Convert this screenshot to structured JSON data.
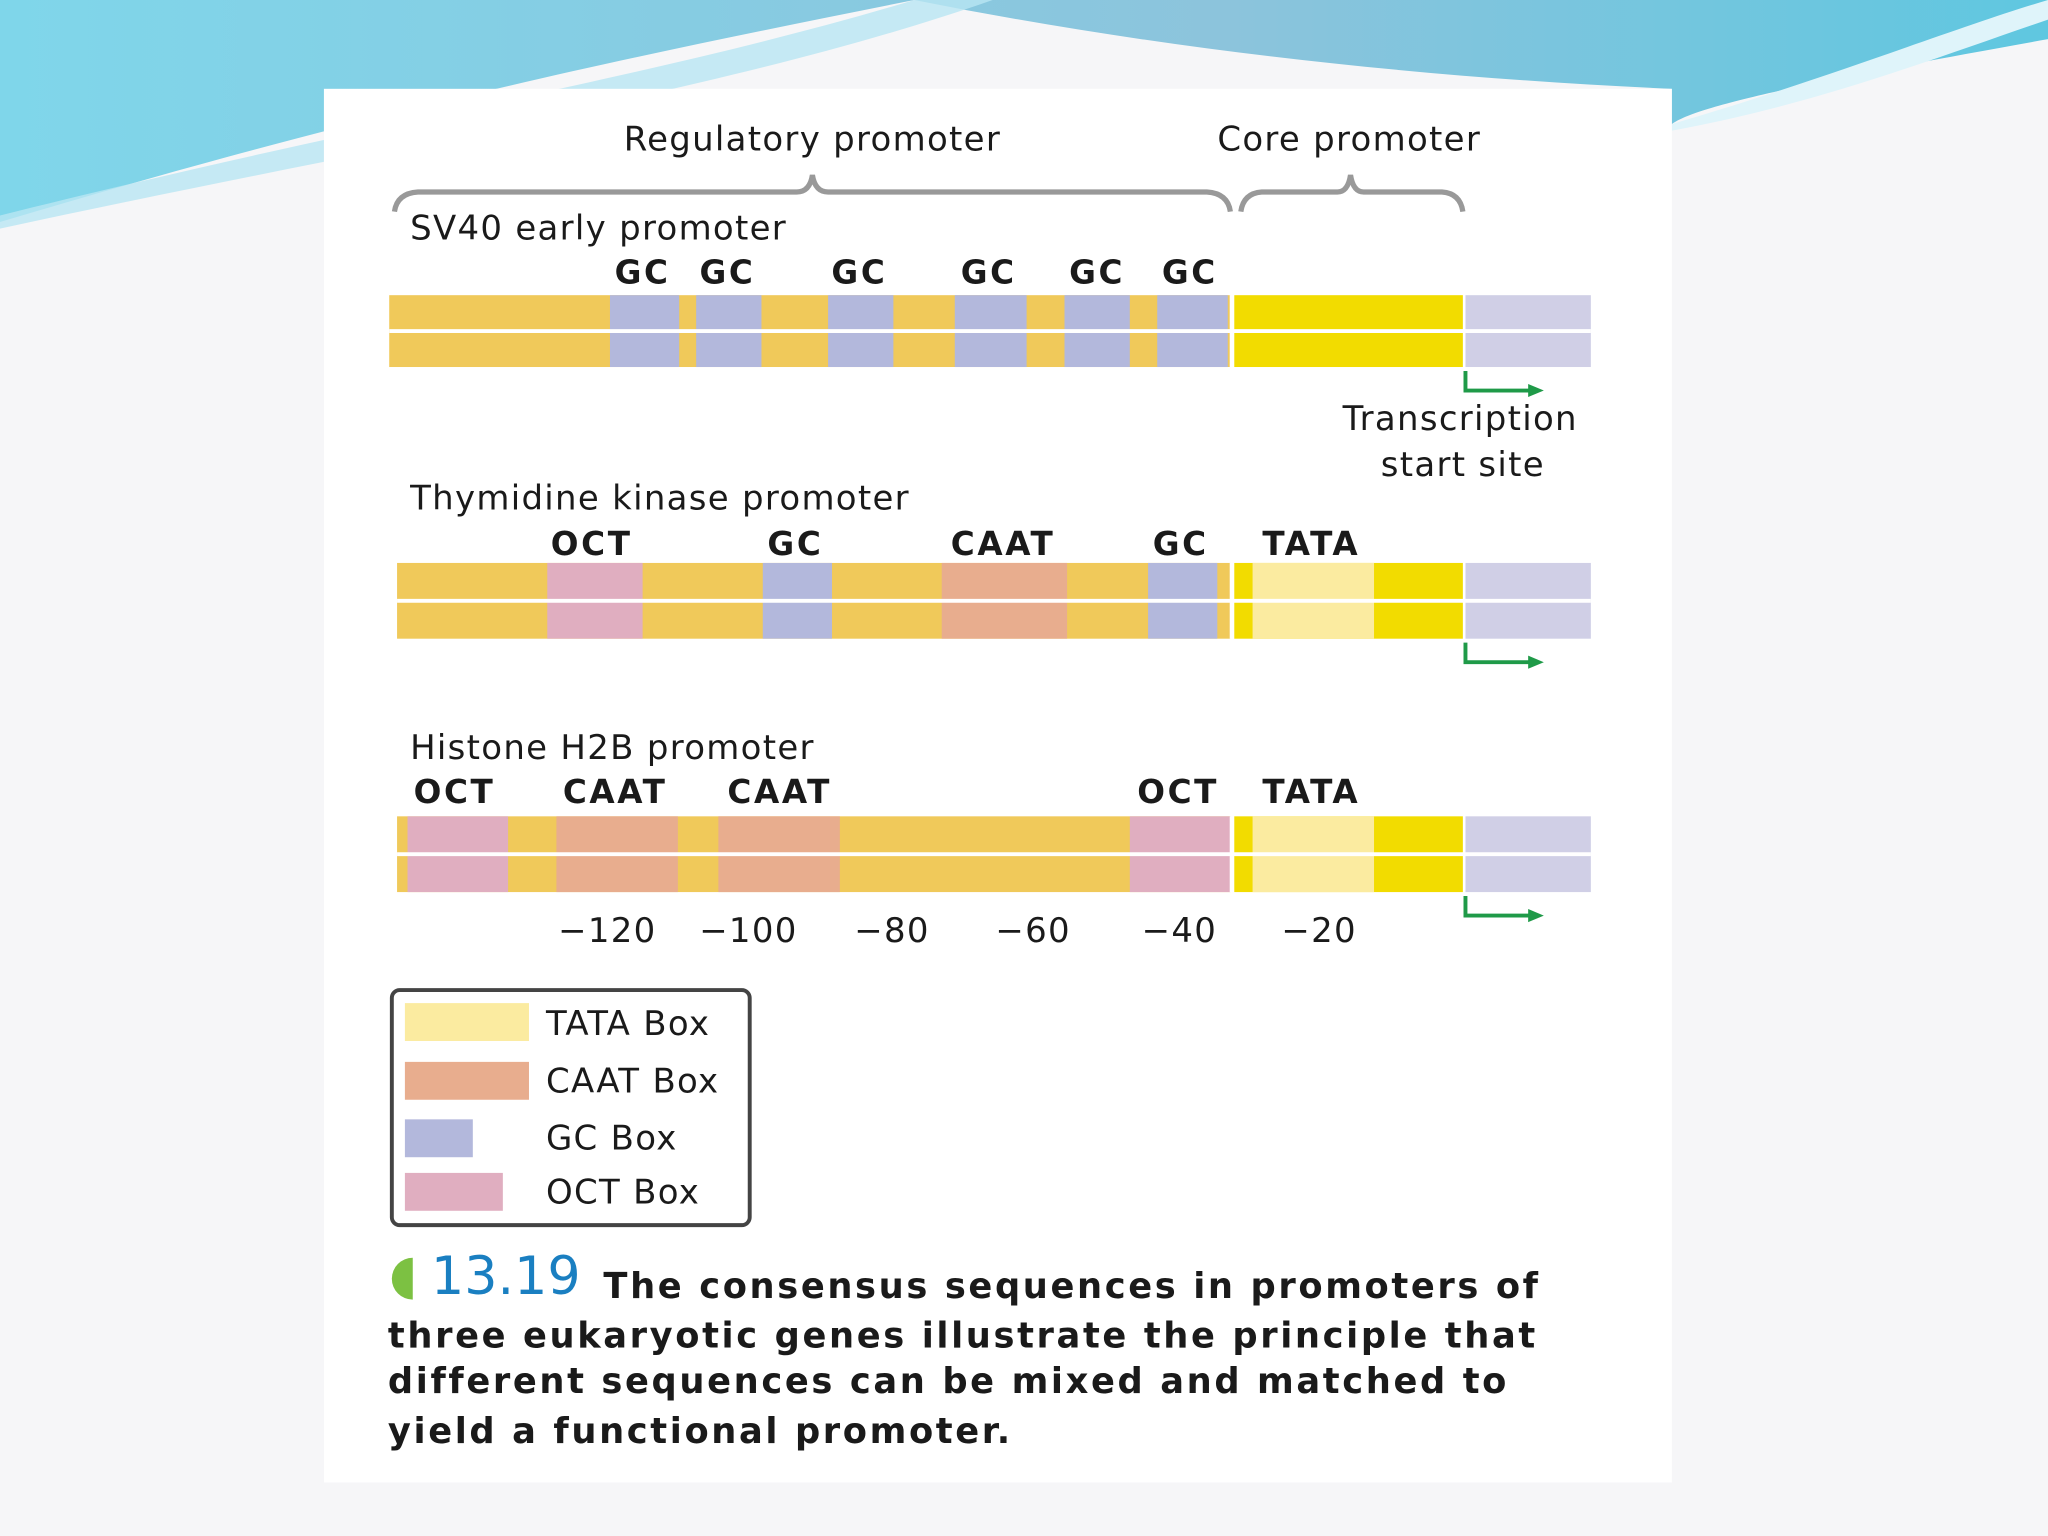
{
  "regions": {
    "regulatory": "Regulatory promoter",
    "core": "Core promoter"
  },
  "promoters": [
    {
      "name": "SV40 early promoter",
      "boxes": [
        "GC",
        "GC",
        "GC",
        "GC",
        "GC",
        "GC"
      ]
    },
    {
      "name": "Thymidine kinase promoter",
      "boxes": [
        "OCT",
        "GC",
        "CAAT",
        "GC",
        "TATA"
      ]
    },
    {
      "name": "Histone H2B promoter",
      "boxes": [
        "OCT",
        "CAAT",
        "CAAT",
        "OCT",
        "TATA"
      ]
    }
  ],
  "start_site": [
    "Transcription",
    "start site"
  ],
  "positions": [
    "−120",
    "−100",
    "−80",
    "−60",
    "−40",
    "−20"
  ],
  "legend": [
    "TATA Box",
    "CAAT Box",
    "GC Box",
    "OCT Box"
  ],
  "caption": {
    "number": "13.19",
    "lines": [
      "The consensus sequences in promoters of",
      "three eukaryotic genes illustrate the principle that",
      "different sequences can be mixed and matched to",
      "yield a functional promoter."
    ]
  }
}
